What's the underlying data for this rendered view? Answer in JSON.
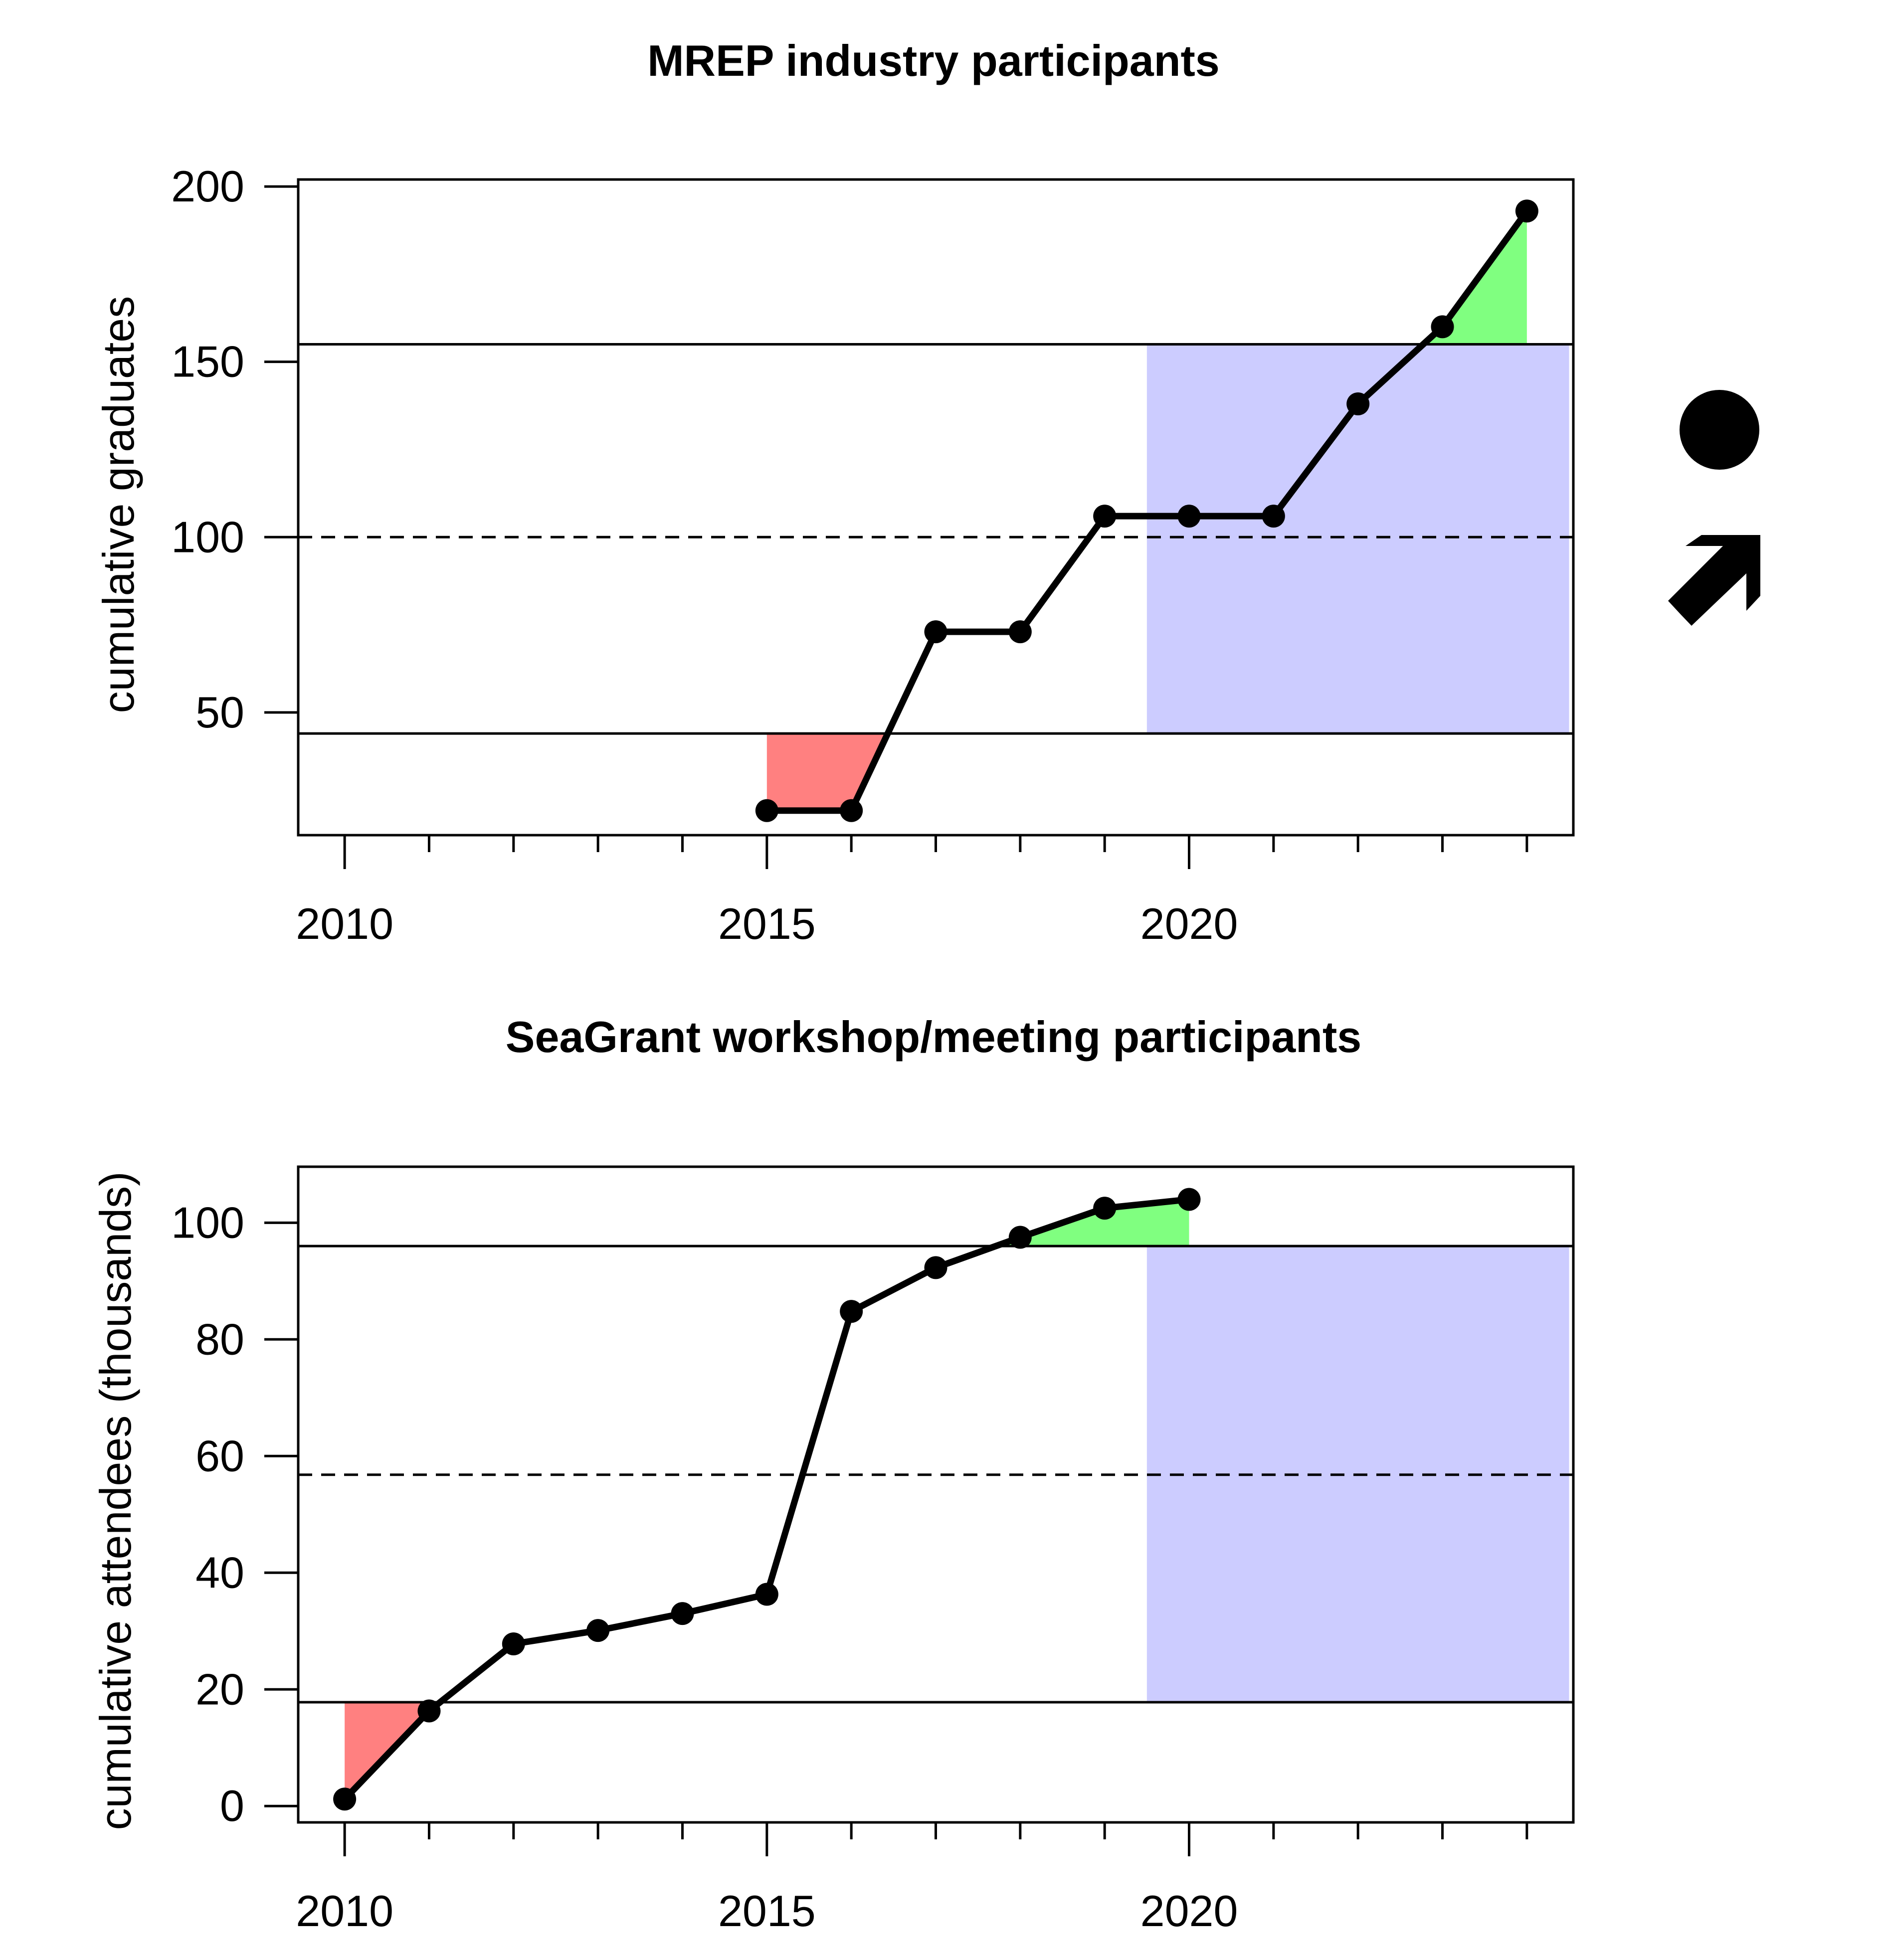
{
  "colors": {
    "below": "#ff8080",
    "above": "#80ff80",
    "recent": "#ccccff",
    "line": "#000000"
  },
  "indicator": {
    "status_icon": "filled-circle-icon",
    "trend_icon": "up-right-arrow-icon"
  },
  "chart_data": [
    {
      "type": "line",
      "title": "MREP industry participants",
      "xlabel": "",
      "ylabel": "cumulative graduates",
      "x": [
        2015,
        2016,
        2017,
        2018,
        2019,
        2020,
        2021,
        2022,
        2023,
        2024
      ],
      "values": [
        22,
        22,
        73,
        73,
        106,
        106,
        106,
        138,
        160,
        193
      ],
      "mean": 100,
      "upper": 155,
      "lower": 44,
      "recent_window": [
        2019.5,
        2024.5
      ],
      "xlim": [
        2009.45,
        2024.55
      ],
      "ylim": [
        15,
        202
      ],
      "yticks": [
        50,
        100,
        150,
        200
      ],
      "ytick_labels": [
        "50",
        "100",
        "150",
        "200"
      ],
      "xticks": [
        2010,
        2015,
        2020
      ],
      "xtick_labels": [
        "2010",
        "2015",
        "2020"
      ],
      "minor_xticks": [
        2011,
        2012,
        2013,
        2014,
        2016,
        2017,
        2018,
        2019,
        2021,
        2022,
        2023,
        2024
      ],
      "grid": false
    },
    {
      "type": "line",
      "title": "SeaGrant workshop/meeting participants",
      "xlabel": "",
      "ylabel": "cumulative attendees (thousands)",
      "x": [
        2010,
        2011,
        2012,
        2013,
        2014,
        2015,
        2016,
        2017,
        2018,
        2019,
        2020
      ],
      "values": [
        1.2,
        16.3,
        27.8,
        30.1,
        33.0,
        36.3,
        84.8,
        92.3,
        97.5,
        102.5,
        104.0
      ],
      "mean": 56.8,
      "upper": 96.0,
      "lower": 17.8,
      "recent_window": [
        2019.5,
        2024.5
      ],
      "xlim": [
        2009.45,
        2024.55
      ],
      "ylim": [
        -2.8,
        109.6
      ],
      "yticks": [
        0,
        20,
        40,
        60,
        80,
        100
      ],
      "ytick_labels": [
        "0",
        "20",
        "40",
        "60",
        "80",
        "100"
      ],
      "xticks": [
        2010,
        2015,
        2020
      ],
      "xtick_labels": [
        "2010",
        "2015",
        "2020"
      ],
      "minor_xticks": [
        2011,
        2012,
        2013,
        2014,
        2016,
        2017,
        2018,
        2019,
        2021,
        2022,
        2023,
        2024
      ],
      "grid": false
    }
  ]
}
